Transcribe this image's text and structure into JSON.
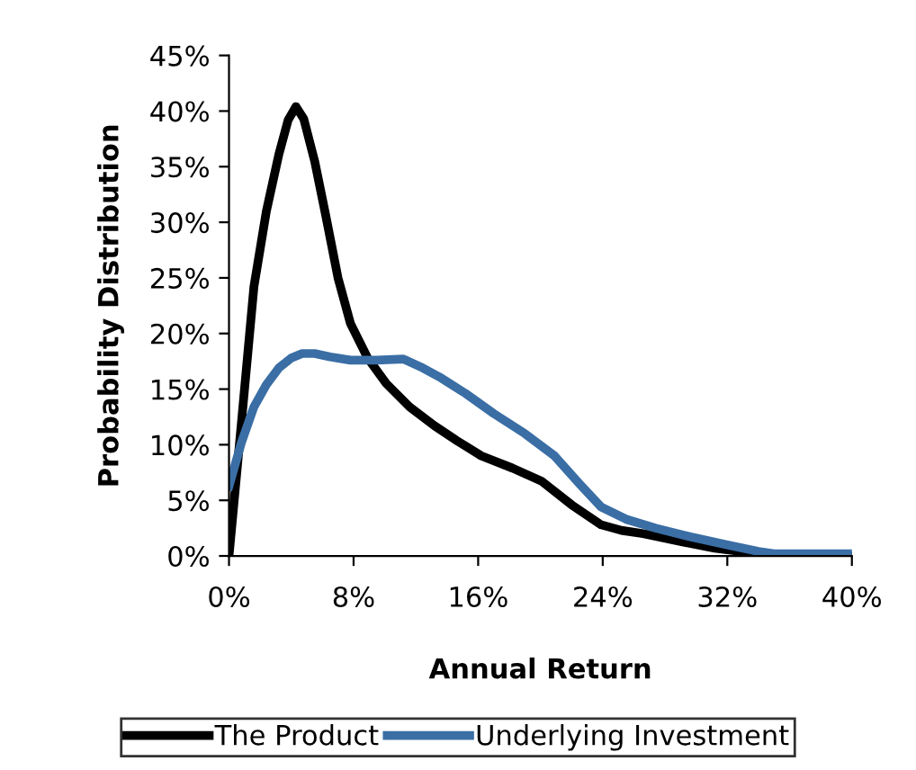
{
  "chart_data": {
    "type": "line",
    "xlabel": "Annual Return",
    "ylabel": "Probability Distribution",
    "xlim": [
      0,
      40
    ],
    "ylim": [
      0,
      45
    ],
    "xticks": [
      {
        "value": 0,
        "label": "0%"
      },
      {
        "value": 8,
        "label": "8%"
      },
      {
        "value": 16,
        "label": "16%"
      },
      {
        "value": 24,
        "label": "24%"
      },
      {
        "value": 32,
        "label": "32%"
      },
      {
        "value": 40,
        "label": "40%"
      }
    ],
    "yticks": [
      {
        "value": 0,
        "label": "0%"
      },
      {
        "value": 5,
        "label": "5%"
      },
      {
        "value": 10,
        "label": "10%"
      },
      {
        "value": 15,
        "label": "15%"
      },
      {
        "value": 20,
        "label": "20%"
      },
      {
        "value": 25,
        "label": "25%"
      },
      {
        "value": 30,
        "label": "30%"
      },
      {
        "value": 35,
        "label": "35%"
      },
      {
        "value": 40,
        "label": "40%"
      },
      {
        "value": 45,
        "label": "45%"
      }
    ],
    "grid": false,
    "legend": "bottom",
    "marker": "none",
    "line_style": "solid",
    "series": [
      {
        "name": "The Product",
        "color": "#000000",
        "x": [
          0,
          0.8,
          1.6,
          2.4,
          3.2,
          3.8,
          4.3,
          4.8,
          5.5,
          6.2,
          7.0,
          7.8,
          8.9,
          10.1,
          11.6,
          13.2,
          14.7,
          16.2,
          18.2,
          20.1,
          22.0,
          23.9,
          25.2,
          26.6,
          29,
          31.2,
          34,
          40
        ],
        "values": [
          0,
          12,
          24.2,
          31,
          36.1,
          39.2,
          40.4,
          39.3,
          35.5,
          30.7,
          25,
          20.9,
          17.8,
          15.5,
          13.4,
          11.7,
          10.3,
          9.0,
          7.9,
          6.7,
          4.6,
          2.8,
          2.3,
          2.0,
          1.3,
          0.7,
          0.2,
          0
        ]
      },
      {
        "name": "Underlying Investment",
        "color": "#3a6ea5",
        "x": [
          0,
          0.8,
          1.6,
          2.4,
          3.2,
          4.0,
          4.7,
          5.5,
          6.5,
          7.8,
          9.5,
          11.2,
          12.3,
          13.5,
          15.2,
          17.0,
          19.0,
          20.9,
          22.5,
          23.9,
          25.5,
          27.4,
          29.7,
          32,
          34,
          35,
          40
        ],
        "values": [
          6.3,
          10.2,
          13.4,
          15.4,
          16.9,
          17.8,
          18.2,
          18.2,
          17.9,
          17.6,
          17.6,
          17.7,
          17.0,
          16.1,
          14.6,
          12.8,
          11.0,
          9.0,
          6.5,
          4.4,
          3.3,
          2.5,
          1.7,
          1.0,
          0.4,
          0.2,
          0.2
        ]
      }
    ]
  }
}
